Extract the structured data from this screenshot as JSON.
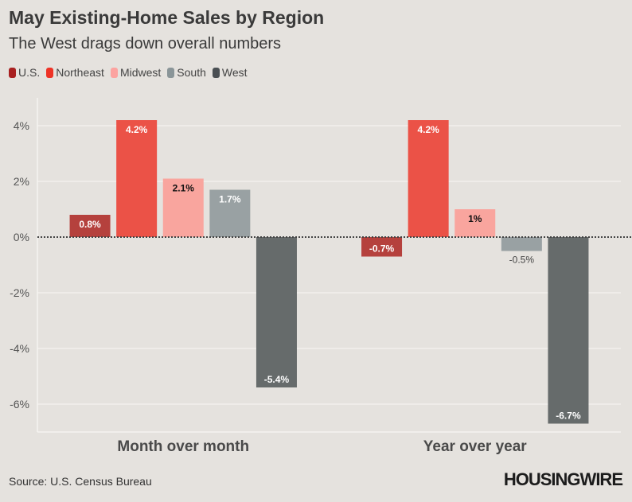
{
  "title": "May Existing-Home Sales by Region",
  "subtitle": "The West drags down overall numbers",
  "source": "Source: U.S. Census Bureau",
  "logo": "HOUSINGWIRE",
  "chart_data": {
    "type": "bar",
    "categories": [
      "Month over month",
      "Year over year"
    ],
    "series": [
      {
        "name": "U.S.",
        "values": [
          0.8,
          -0.7
        ],
        "labels": [
          "0.8%",
          "-0.7%"
        ],
        "color": "#b5413d",
        "legend_color": "#a82020",
        "label_color": "#ffffff"
      },
      {
        "name": "Northeast",
        "values": [
          4.2,
          4.2
        ],
        "labels": [
          "4.2%",
          "4.2%"
        ],
        "color": "#eb5247",
        "legend_color": "#ee3326",
        "label_color": "#ffffff"
      },
      {
        "name": "Midwest",
        "values": [
          2.1,
          1
        ],
        "labels": [
          "2.1%",
          "1%"
        ],
        "color": "#f9a59e",
        "legend_color": "#fca3a0",
        "label_color": "#111111"
      },
      {
        "name": "South",
        "values": [
          1.7,
          -0.5
        ],
        "labels": [
          "1.7%",
          "-0.5%"
        ],
        "color": "#99a1a3",
        "legend_color": "#8a9598",
        "label_color": "#ffffff"
      },
      {
        "name": "West",
        "values": [
          -5.4,
          -6.7
        ],
        "labels": [
          "-5.4%",
          "-6.7%"
        ],
        "color": "#666b6b",
        "legend_color": "#4a4f53",
        "label_color": "#ffffff"
      }
    ],
    "yticks": [
      4,
      2,
      0,
      -2,
      -4,
      -6
    ],
    "ytick_labels": [
      "4%",
      "2%",
      "0%",
      "-2%",
      "-4%",
      "-6%"
    ],
    "ylim": [
      -7,
      5
    ],
    "grid": true,
    "legend": "top-left"
  }
}
